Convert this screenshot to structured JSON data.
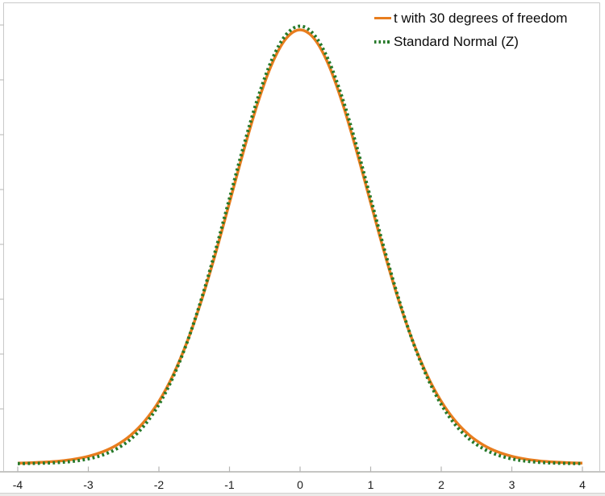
{
  "chart_data": {
    "type": "line",
    "title": "",
    "xlabel": "",
    "ylabel": "",
    "xlim": [
      -4,
      4
    ],
    "ylim": [
      0,
      0.42
    ],
    "xticks": [
      "-4",
      "-3",
      "-2",
      "-1",
      "0",
      "1",
      "2",
      "3",
      "4"
    ],
    "ytick_step": 0.05,
    "grid": false,
    "legend_position": "top-right",
    "x": [
      -4,
      -3.8,
      -3.6,
      -3.4,
      -3.2,
      -3,
      -2.8,
      -2.6,
      -2.4,
      -2.2,
      -2,
      -1.8,
      -1.6,
      -1.4,
      -1.2,
      -1,
      -0.8,
      -0.6,
      -0.4,
      -0.2,
      0,
      0.2,
      0.4,
      0.6,
      0.8,
      1,
      1.2,
      1.4,
      1.6,
      1.8,
      2,
      2.2,
      2.4,
      2.6,
      2.8,
      3,
      3.2,
      3.4,
      3.6,
      3.8,
      4
    ],
    "series": [
      {
        "name": "t with 30 degrees of freedom",
        "style": "solid",
        "color": "#e87d1e",
        "values": [
          0.00052,
          0.0009,
          0.00152,
          0.00253,
          0.00418,
          0.00678,
          0.01082,
          0.01695,
          0.02598,
          0.03896,
          0.05685,
          0.08071,
          0.11118,
          0.14835,
          0.19128,
          0.238,
          0.28523,
          0.32885,
          0.36433,
          0.38755,
          0.39563,
          0.38755,
          0.36433,
          0.32885,
          0.28523,
          0.238,
          0.19128,
          0.14835,
          0.11118,
          0.08071,
          0.05685,
          0.03896,
          0.02598,
          0.01695,
          0.01082,
          0.00678,
          0.00418,
          0.00253,
          0.00152,
          0.0009,
          0.00052
        ]
      },
      {
        "name": "Standard Normal (Z)",
        "style": "dotted",
        "color": "#26792a",
        "values": [
          0.00013,
          0.00029,
          0.00061,
          0.00123,
          0.00238,
          0.00443,
          0.00792,
          0.01358,
          0.02239,
          0.03548,
          0.05399,
          0.07895,
          0.11092,
          0.14973,
          0.19419,
          0.24197,
          0.28969,
          0.33322,
          0.36827,
          0.39104,
          0.39894,
          0.39104,
          0.36827,
          0.33322,
          0.28969,
          0.24197,
          0.19419,
          0.14973,
          0.11092,
          0.07895,
          0.05399,
          0.03548,
          0.02239,
          0.01358,
          0.00792,
          0.00443,
          0.00238,
          0.00123,
          0.00061,
          0.00029,
          0.00013
        ]
      }
    ],
    "frame_color": "#c9c9c9",
    "axis_line_color": "#c5c5c3",
    "tick_color": "#b5b5b3",
    "tick_label_color": "#1c1c1c"
  }
}
